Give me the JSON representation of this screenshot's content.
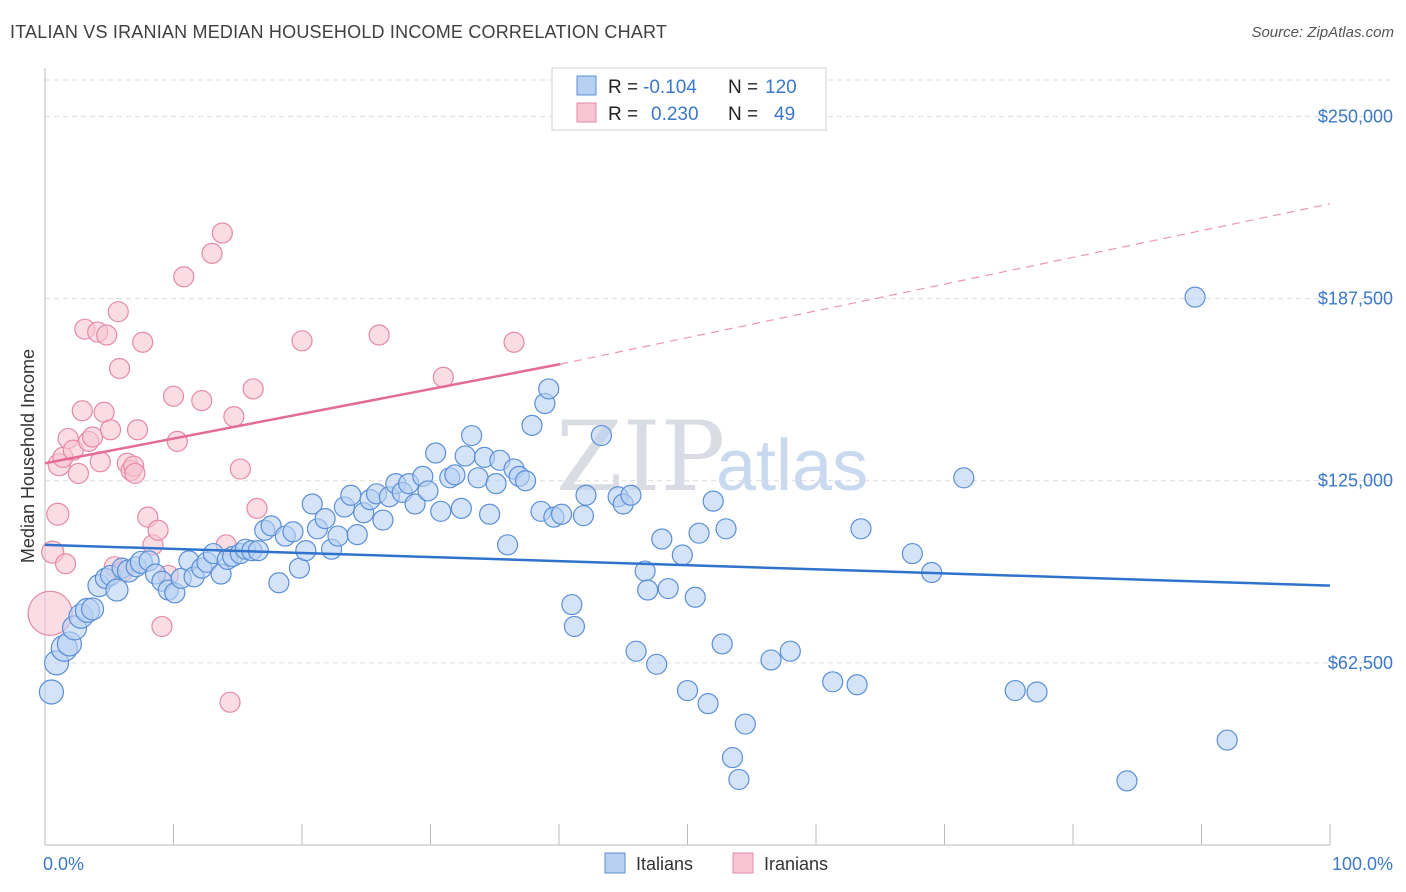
{
  "title": "ITALIAN VS IRANIAN MEDIAN HOUSEHOLD INCOME CORRELATION CHART",
  "source": "Source: ZipAtlas.com",
  "watermark": {
    "part1": "ZIP",
    "part2": "atlas"
  },
  "colors": {
    "italians_fill": "#b7d0f2",
    "italians_stroke": "#5a8fd6",
    "italians_line": "#2f73cc",
    "iranians_fill": "#f7c4d4",
    "iranians_stroke": "#e58aa6",
    "iranians_line": "#e36b94",
    "tick_text": "#3b78c9",
    "grid": "#dcdcdc"
  },
  "legend_box": {
    "rows": [
      {
        "r_label": "R =",
        "r_value": "-0.104",
        "n_label": "N =",
        "n_value": "120"
      },
      {
        "r_label": "R =",
        "r_value": "0.230",
        "n_label": "N =",
        "n_value": "49"
      }
    ]
  },
  "chart_data": {
    "type": "scatter",
    "title": "ITALIAN VS IRANIAN MEDIAN HOUSEHOLD INCOME CORRELATION CHART",
    "xlabel": "",
    "ylabel": "Median Household Income",
    "x_range": [
      0,
      100
    ],
    "ylim": [
      0,
      262500
    ],
    "x_tick_labels": [
      "0.0%",
      "100.0%"
    ],
    "y_ticks": [
      62500,
      125000,
      187500,
      250000
    ],
    "y_tick_labels": [
      "$62,500",
      "$125,000",
      "$187,500",
      "$250,000"
    ],
    "grid": true,
    "legend_position": "bottom-center",
    "series": [
      {
        "name": "Italians",
        "r": -0.104,
        "n": 120,
        "trend": {
          "x": [
            0,
            100
          ],
          "y": [
            103000,
            89000
          ],
          "dashed_x": null
        },
        "points": [
          [
            0.5,
            52500,
            24
          ],
          [
            0.9,
            62500,
            24
          ],
          [
            1.5,
            67500,
            26
          ],
          [
            1.9,
            69000,
            24
          ],
          [
            2.3,
            74500,
            24
          ],
          [
            2.8,
            78500,
            24
          ],
          [
            3.3,
            80500,
            24
          ],
          [
            3.7,
            81000,
            22
          ],
          [
            4.2,
            89000,
            22
          ],
          [
            4.7,
            91500,
            20
          ],
          [
            5.1,
            92500,
            20
          ],
          [
            5.6,
            87500,
            22
          ],
          [
            6.0,
            95000,
            20
          ],
          [
            6.5,
            94000,
            22
          ],
          [
            7.1,
            95500,
            20
          ],
          [
            7.5,
            97000,
            22
          ],
          [
            8.1,
            97500,
            20
          ],
          [
            8.6,
            93000,
            20
          ],
          [
            9.1,
            90500,
            20
          ],
          [
            9.6,
            87500,
            20
          ],
          [
            10.1,
            86500,
            20
          ],
          [
            10.6,
            91500,
            20
          ],
          [
            11.2,
            97500,
            20
          ],
          [
            11.6,
            92000,
            20
          ],
          [
            12.2,
            95000,
            20
          ],
          [
            12.6,
            97000,
            20
          ],
          [
            13.1,
            100000,
            20
          ],
          [
            13.7,
            93000,
            20
          ],
          [
            14.2,
            98000,
            20
          ],
          [
            14.6,
            99000,
            20
          ],
          [
            15.2,
            100000,
            20
          ],
          [
            15.6,
            101500,
            20
          ],
          [
            16.1,
            101000,
            20
          ],
          [
            16.6,
            101000,
            20
          ],
          [
            17.1,
            108000,
            20
          ],
          [
            17.6,
            109500,
            20
          ],
          [
            18.2,
            90000,
            20
          ],
          [
            18.7,
            106000,
            20
          ],
          [
            19.3,
            107500,
            20
          ],
          [
            19.8,
            95000,
            20
          ],
          [
            20.3,
            101000,
            20
          ],
          [
            20.8,
            117000,
            20
          ],
          [
            21.2,
            108500,
            20
          ],
          [
            21.8,
            112000,
            20
          ],
          [
            22.3,
            101500,
            20
          ],
          [
            22.8,
            106000,
            20
          ],
          [
            23.3,
            116000,
            20
          ],
          [
            23.8,
            120000,
            20
          ],
          [
            24.3,
            106500,
            20
          ],
          [
            24.8,
            114000,
            20
          ],
          [
            25.3,
            118500,
            20
          ],
          [
            25.8,
            120500,
            20
          ],
          [
            26.3,
            111500,
            20
          ],
          [
            26.8,
            119500,
            20
          ],
          [
            27.3,
            124000,
            20
          ],
          [
            27.8,
            121000,
            20
          ],
          [
            28.3,
            124000,
            20
          ],
          [
            28.8,
            117000,
            20
          ],
          [
            29.4,
            126500,
            20
          ],
          [
            29.8,
            121500,
            20
          ],
          [
            30.4,
            134500,
            20
          ],
          [
            30.8,
            114500,
            20
          ],
          [
            31.5,
            126000,
            20
          ],
          [
            31.9,
            127000,
            20
          ],
          [
            32.4,
            115500,
            20
          ],
          [
            32.7,
            133500,
            20
          ],
          [
            33.2,
            140500,
            20
          ],
          [
            33.7,
            126000,
            20
          ],
          [
            34.2,
            133000,
            20
          ],
          [
            34.6,
            113500,
            20
          ],
          [
            35.1,
            124000,
            20
          ],
          [
            35.4,
            132000,
            20
          ],
          [
            36.0,
            103000,
            20
          ],
          [
            36.5,
            129000,
            20
          ],
          [
            36.9,
            126500,
            20
          ],
          [
            37.4,
            125000,
            20
          ],
          [
            37.9,
            144000,
            20
          ],
          [
            38.6,
            114500,
            20
          ],
          [
            38.9,
            151500,
            20
          ],
          [
            39.2,
            156500,
            20
          ],
          [
            39.6,
            112500,
            20
          ],
          [
            40.2,
            113500,
            20
          ],
          [
            41.0,
            82500,
            20
          ],
          [
            41.2,
            75000,
            20
          ],
          [
            41.9,
            113000,
            20
          ],
          [
            42.1,
            120000,
            20
          ],
          [
            43.3,
            140500,
            20
          ],
          [
            44.6,
            119500,
            20
          ],
          [
            45.0,
            117000,
            20
          ],
          [
            45.6,
            120000,
            20
          ],
          [
            46.0,
            66500,
            20
          ],
          [
            46.7,
            94000,
            20
          ],
          [
            46.9,
            87500,
            20
          ],
          [
            47.6,
            62000,
            20
          ],
          [
            48.0,
            105000,
            20
          ],
          [
            48.5,
            88000,
            20
          ],
          [
            49.6,
            99500,
            20
          ],
          [
            50.0,
            53000,
            20
          ],
          [
            50.6,
            85000,
            20
          ],
          [
            50.9,
            107000,
            20
          ],
          [
            51.6,
            48500,
            20
          ],
          [
            52.0,
            118000,
            20
          ],
          [
            52.7,
            69000,
            20
          ],
          [
            53.0,
            108500,
            20
          ],
          [
            53.5,
            30000,
            20
          ],
          [
            54.0,
            22500,
            20
          ],
          [
            54.5,
            41500,
            20
          ],
          [
            56.5,
            63500,
            20
          ],
          [
            58.0,
            66500,
            20
          ],
          [
            61.3,
            56000,
            20
          ],
          [
            63.2,
            55000,
            20
          ],
          [
            63.5,
            108500,
            20
          ],
          [
            67.5,
            100000,
            20
          ],
          [
            69.0,
            93500,
            20
          ],
          [
            71.5,
            126000,
            20
          ],
          [
            75.5,
            53000,
            20
          ],
          [
            77.2,
            52500,
            20
          ],
          [
            84.2,
            22000,
            20
          ],
          [
            89.5,
            188000,
            20
          ],
          [
            92.0,
            36000,
            20
          ]
        ]
      },
      {
        "name": "Iranians",
        "r": 0.23,
        "n": 49,
        "trend": {
          "x": [
            0,
            40.1
          ],
          "y": [
            131000,
            165000
          ],
          "dashed_x": [
            40.1,
            100
          ],
          "dashed_y": [
            165000,
            220000
          ]
        },
        "points": [
          [
            0.4,
            79500,
            44
          ],
          [
            0.6,
            100500,
            22
          ],
          [
            1.0,
            113500,
            22
          ],
          [
            1.1,
            130500,
            22
          ],
          [
            1.4,
            133000,
            20
          ],
          [
            1.6,
            96500,
            20
          ],
          [
            1.8,
            139500,
            20
          ],
          [
            2.2,
            135500,
            20
          ],
          [
            2.6,
            127500,
            20
          ],
          [
            2.9,
            149000,
            20
          ],
          [
            3.1,
            177000,
            20
          ],
          [
            3.4,
            138500,
            20
          ],
          [
            3.7,
            140000,
            20
          ],
          [
            4.1,
            176000,
            20
          ],
          [
            4.3,
            131500,
            20
          ],
          [
            4.6,
            148500,
            20
          ],
          [
            4.8,
            175000,
            20
          ],
          [
            5.1,
            142500,
            20
          ],
          [
            5.4,
            95500,
            20
          ],
          [
            5.7,
            183000,
            20
          ],
          [
            5.8,
            163500,
            20
          ],
          [
            6.1,
            94000,
            20
          ],
          [
            6.4,
            131000,
            20
          ],
          [
            6.7,
            128500,
            20
          ],
          [
            6.9,
            130000,
            20
          ],
          [
            7.0,
            127500,
            20
          ],
          [
            7.2,
            142500,
            20
          ],
          [
            7.6,
            172500,
            20
          ],
          [
            8.0,
            112500,
            20
          ],
          [
            8.4,
            103000,
            20
          ],
          [
            8.8,
            108000,
            20
          ],
          [
            9.1,
            75000,
            20
          ],
          [
            9.6,
            92500,
            20
          ],
          [
            10.0,
            154000,
            20
          ],
          [
            10.3,
            138500,
            20
          ],
          [
            10.8,
            195000,
            20
          ],
          [
            12.2,
            152500,
            20
          ],
          [
            13.0,
            203000,
            20
          ],
          [
            13.8,
            210000,
            20
          ],
          [
            14.1,
            103000,
            20
          ],
          [
            14.4,
            49000,
            20
          ],
          [
            14.7,
            147000,
            20
          ],
          [
            15.2,
            129000,
            20
          ],
          [
            16.2,
            156500,
            20
          ],
          [
            16.5,
            115500,
            20
          ],
          [
            20.0,
            173000,
            20
          ],
          [
            26.0,
            175000,
            20
          ],
          [
            31.0,
            160500,
            20
          ],
          [
            36.5,
            172500,
            20
          ]
        ]
      }
    ]
  }
}
